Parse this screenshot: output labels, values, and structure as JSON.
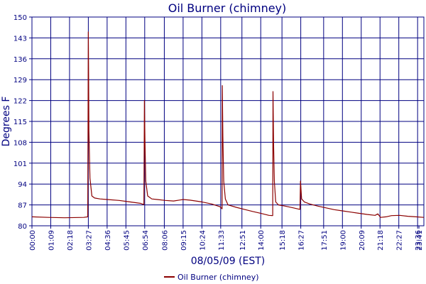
{
  "chart_data": {
    "type": "line",
    "title": "Oil Burner (chimney)",
    "xlabel": "08/05/09 (EST)",
    "ylabel": "Degrees F",
    "ylim": [
      80,
      150
    ],
    "yticks": [
      80,
      87,
      94,
      101,
      108,
      115,
      122,
      129,
      136,
      143,
      150
    ],
    "xlim": [
      "00:00",
      "23:59"
    ],
    "xticks": [
      "00:00",
      "01:09",
      "02:18",
      "03:27",
      "04:36",
      "05:45",
      "06:54",
      "08:06",
      "09:15",
      "10:24",
      "11:33",
      "12:51",
      "14:00",
      "15:18",
      "16:27",
      "17:51",
      "19:00",
      "20:09",
      "21:18",
      "22:27",
      "23:36",
      "23:41"
    ],
    "grid": true,
    "legend": "bottom-center",
    "colors": {
      "series": "#8b0000",
      "grid": "#000080",
      "text": "#000080"
    },
    "series": [
      {
        "name": "Oil Burner (chimney)",
        "x": [
          "00:00",
          "01:00",
          "02:00",
          "03:10",
          "03:25",
          "03:27",
          "03:28",
          "03:29",
          "03:33",
          "03:40",
          "03:50",
          "04:10",
          "04:36",
          "05:20",
          "06:00",
          "06:40",
          "06:51",
          "06:53",
          "06:55",
          "06:58",
          "07:05",
          "07:20",
          "07:40",
          "08:10",
          "08:40",
          "09:15",
          "09:40",
          "10:24",
          "11:00",
          "11:30",
          "11:38",
          "11:39",
          "11:41",
          "11:44",
          "11:50",
          "12:00",
          "12:30",
          "13:00",
          "13:30",
          "14:00",
          "14:30",
          "14:44",
          "14:45",
          "14:47",
          "14:50",
          "14:55",
          "15:05",
          "15:30",
          "16:00",
          "16:24",
          "16:26",
          "16:28",
          "16:30",
          "16:40",
          "17:00",
          "17:30",
          "18:00",
          "18:30",
          "19:00",
          "19:30",
          "20:00",
          "20:30",
          "21:00",
          "21:10",
          "21:20",
          "21:40",
          "22:00",
          "22:30",
          "23:00",
          "23:30",
          "23:59"
        ],
        "values": [
          83,
          82.8,
          82.7,
          82.8,
          83,
          145,
          131,
          112,
          96,
          90,
          89.3,
          89,
          88.8,
          88.5,
          88,
          87.5,
          87.1,
          122,
          108,
          95,
          90,
          89,
          88.8,
          88.5,
          88.3,
          88.8,
          88.6,
          88,
          87.3,
          86.4,
          85.7,
          127,
          110,
          95,
          89,
          87,
          86.2,
          85.5,
          84.8,
          84.2,
          83.5,
          83.4,
          125,
          108,
          95,
          88,
          87,
          86.6,
          86,
          85.5,
          95,
          92,
          89,
          88,
          87.3,
          86.6,
          86,
          85.4,
          85,
          84.6,
          84.2,
          83.8,
          83.5,
          84,
          82.8,
          83,
          83.4,
          83.5,
          83.2,
          83,
          82.8
        ]
      }
    ]
  }
}
